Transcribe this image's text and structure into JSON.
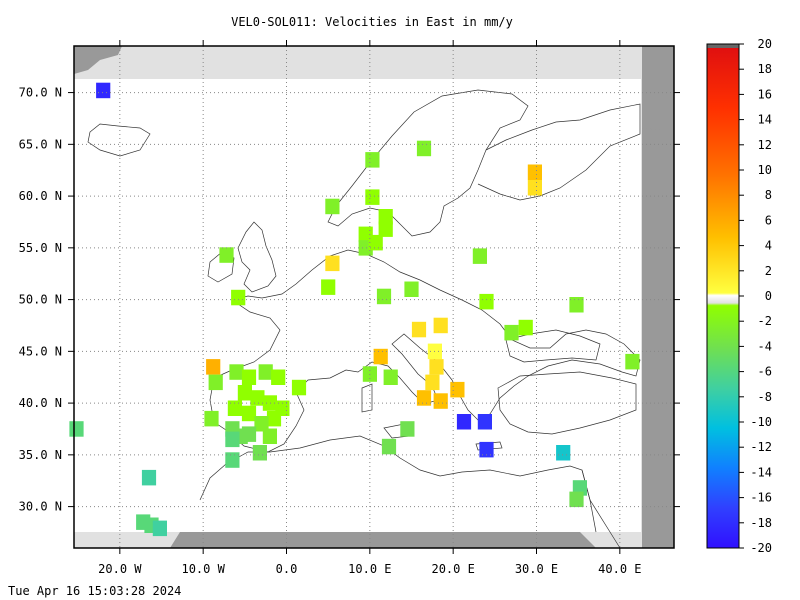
{
  "chart_data": {
    "type": "heatmap",
    "title": "VEL0-SOL011: Velocities in East in mm/y",
    "xlabel": "",
    "ylabel": "",
    "xlim": [
      -25.5,
      46.5
    ],
    "ylim": [
      26.0,
      74.5
    ],
    "x_ticks": [
      {
        "value": -20,
        "label": "20.0 W"
      },
      {
        "value": -10,
        "label": "10.0 W"
      },
      {
        "value": 0,
        "label": "0.0"
      },
      {
        "value": 10,
        "label": "10.0 E"
      },
      {
        "value": 20,
        "label": "20.0 E"
      },
      {
        "value": 30,
        "label": "30.0 E"
      },
      {
        "value": 40,
        "label": "40.0 E"
      }
    ],
    "y_ticks": [
      {
        "value": 30,
        "label": "30.0 N"
      },
      {
        "value": 35,
        "label": "35.0 N"
      },
      {
        "value": 40,
        "label": "40.0 N"
      },
      {
        "value": 45,
        "label": "45.0 N"
      },
      {
        "value": 50,
        "label": "50.0 N"
      },
      {
        "value": 55,
        "label": "55.0 N"
      },
      {
        "value": 60,
        "label": "60.0 N"
      },
      {
        "value": 65,
        "label": "65.0 N"
      },
      {
        "value": 70,
        "label": "70.0 N"
      }
    ],
    "grid": true,
    "colorbar": {
      "min": -20,
      "max": 20,
      "labels": [
        "20",
        "18",
        "16",
        "14",
        "12",
        "10",
        "8",
        "6",
        "4",
        "2",
        "0",
        "-2",
        "-4",
        "-6",
        "-8",
        "-10",
        "-12",
        "-14",
        "-16",
        "-18",
        "-20"
      ]
    },
    "cells": [
      {
        "lon": -22,
        "lat": 70.2,
        "v": -18
      },
      {
        "lon": -25.2,
        "lat": 37.5,
        "v": -4
      },
      {
        "lon": -16.5,
        "lat": 32.8,
        "v": -5
      },
      {
        "lon": -17.2,
        "lat": 28.5,
        "v": -4
      },
      {
        "lon": -16.2,
        "lat": 28.2,
        "v": -4
      },
      {
        "lon": -15.2,
        "lat": 27.9,
        "v": -5
      },
      {
        "lon": -7.2,
        "lat": 54.3,
        "v": -2
      },
      {
        "lon": -5.8,
        "lat": 50.2,
        "v": -1
      },
      {
        "lon": -8.8,
        "lat": 43.5,
        "v": 4
      },
      {
        "lon": -8.5,
        "lat": 42.0,
        "v": -2
      },
      {
        "lon": -6.0,
        "lat": 43.0,
        "v": -2
      },
      {
        "lon": -4.5,
        "lat": 42.5,
        "v": -1
      },
      {
        "lon": -2.5,
        "lat": 43.0,
        "v": -2
      },
      {
        "lon": -1.0,
        "lat": 42.5,
        "v": -1
      },
      {
        "lon": 1.5,
        "lat": 41.5,
        "v": -1
      },
      {
        "lon": -5.0,
        "lat": 41.0,
        "v": -1
      },
      {
        "lon": -3.5,
        "lat": 40.5,
        "v": -1
      },
      {
        "lon": -2.0,
        "lat": 40.0,
        "v": -1
      },
      {
        "lon": -0.5,
        "lat": 39.5,
        "v": -1
      },
      {
        "lon": -6.2,
        "lat": 39.5,
        "v": -1
      },
      {
        "lon": -9.0,
        "lat": 38.5,
        "v": -2
      },
      {
        "lon": -4.5,
        "lat": 39.0,
        "v": -1
      },
      {
        "lon": -1.5,
        "lat": 38.5,
        "v": -1
      },
      {
        "lon": -3.0,
        "lat": 38.0,
        "v": -2
      },
      {
        "lon": -6.5,
        "lat": 37.5,
        "v": -3
      },
      {
        "lon": -5.5,
        "lat": 36.8,
        "v": -3
      },
      {
        "lon": -4.5,
        "lat": 37.0,
        "v": -3
      },
      {
        "lon": -2.0,
        "lat": 36.8,
        "v": -2
      },
      {
        "lon": -3.2,
        "lat": 35.2,
        "v": -3
      },
      {
        "lon": -6.5,
        "lat": 34.5,
        "v": -4
      },
      {
        "lon": -6.5,
        "lat": 36.5,
        "v": -4
      },
      {
        "lon": 5.0,
        "lat": 51.2,
        "v": -1
      },
      {
        "lon": 5.5,
        "lat": 53.5,
        "v": 2
      },
      {
        "lon": 5.5,
        "lat": 59.0,
        "v": -2
      },
      {
        "lon": 10.3,
        "lat": 63.5,
        "v": -2
      },
      {
        "lon": 10.3,
        "lat": 59.9,
        "v": -1
      },
      {
        "lon": 11.9,
        "lat": 58.0,
        "v": -1
      },
      {
        "lon": 11.9,
        "lat": 56.8,
        "v": -1
      },
      {
        "lon": 9.5,
        "lat": 56.3,
        "v": -1
      },
      {
        "lon": 9.5,
        "lat": 55.0,
        "v": -2
      },
      {
        "lon": 10.7,
        "lat": 55.5,
        "v": -1
      },
      {
        "lon": 16.5,
        "lat": 64.6,
        "v": -2
      },
      {
        "lon": 29.8,
        "lat": 62.3,
        "v": 3
      },
      {
        "lon": 29.8,
        "lat": 60.8,
        "v": 2
      },
      {
        "lon": 23.2,
        "lat": 54.2,
        "v": -2
      },
      {
        "lon": 11.7,
        "lat": 50.3,
        "v": -2
      },
      {
        "lon": 15.0,
        "lat": 51.0,
        "v": -2
      },
      {
        "lon": 24.0,
        "lat": 49.8,
        "v": -1
      },
      {
        "lon": 34.8,
        "lat": 49.5,
        "v": -2
      },
      {
        "lon": 27.0,
        "lat": 46.8,
        "v": -2
      },
      {
        "lon": 28.7,
        "lat": 47.3,
        "v": -1
      },
      {
        "lon": 15.9,
        "lat": 47.1,
        "v": 2
      },
      {
        "lon": 18.5,
        "lat": 47.5,
        "v": 2
      },
      {
        "lon": 11.3,
        "lat": 44.5,
        "v": 3
      },
      {
        "lon": 17.8,
        "lat": 45.0,
        "v": 1
      },
      {
        "lon": 18.0,
        "lat": 43.5,
        "v": 2
      },
      {
        "lon": 17.5,
        "lat": 42.0,
        "v": 2
      },
      {
        "lon": 16.5,
        "lat": 40.5,
        "v": 3
      },
      {
        "lon": 18.5,
        "lat": 40.2,
        "v": 3
      },
      {
        "lon": 20.5,
        "lat": 41.3,
        "v": 3
      },
      {
        "lon": 10.0,
        "lat": 42.8,
        "v": -2
      },
      {
        "lon": 12.5,
        "lat": 42.5,
        "v": -2
      },
      {
        "lon": 14.5,
        "lat": 37.5,
        "v": -3
      },
      {
        "lon": 12.3,
        "lat": 35.8,
        "v": -3
      },
      {
        "lon": 21.3,
        "lat": 38.2,
        "v": -18
      },
      {
        "lon": 23.8,
        "lat": 38.2,
        "v": -17
      },
      {
        "lon": 24.0,
        "lat": 35.5,
        "v": -17
      },
      {
        "lon": 33.2,
        "lat": 35.2,
        "v": -7
      },
      {
        "lon": 35.2,
        "lat": 31.8,
        "v": -4
      },
      {
        "lon": 34.8,
        "lat": 30.7,
        "v": -3
      },
      {
        "lon": 41.5,
        "lat": 44.0,
        "v": -2
      }
    ]
  },
  "footer": {
    "timestamp": "Tue Apr 16 15:03:28 2024"
  }
}
